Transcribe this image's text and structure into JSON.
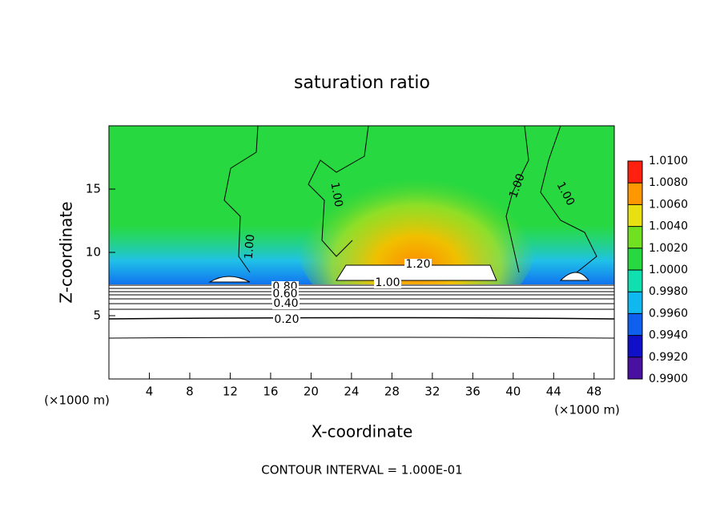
{
  "chart_data": {
    "type": "contour",
    "title": "saturation ratio",
    "xlabel": "X-coordinate",
    "ylabel": "Z-coordinate",
    "x_unit_label": "(×1000 m)",
    "y_unit_label": "(×1000 m)",
    "footer": "CONTOUR INTERVAL = 1.000E-01",
    "xlim": [
      0,
      50
    ],
    "xticks": [
      4,
      8,
      12,
      16,
      20,
      24,
      28,
      32,
      36,
      40,
      44,
      48
    ],
    "ylim": [
      0,
      20
    ],
    "yticks": [
      5,
      10,
      15
    ],
    "contour_labels": [
      "1.20",
      "1.00",
      "0.80",
      "0.60",
      "0.40",
      "0.20",
      "1.00",
      "1.00",
      "1.00",
      "1.00"
    ],
    "colorbar": {
      "lim": [
        0.99,
        1.01
      ],
      "ticks": [
        {
          "value": 0.99,
          "label": "0.9900"
        },
        {
          "value": 0.992,
          "label": "0.9920"
        },
        {
          "value": 0.994,
          "label": "0.9940"
        },
        {
          "value": 0.996,
          "label": "0.9960"
        },
        {
          "value": 0.998,
          "label": "0.9980"
        },
        {
          "value": 1.0,
          "label": "1.0000"
        },
        {
          "value": 1.002,
          "label": "1.0020"
        },
        {
          "value": 1.004,
          "label": "1.0040"
        },
        {
          "value": 1.006,
          "label": "1.0060"
        },
        {
          "value": 1.008,
          "label": "1.0080"
        },
        {
          "value": 1.01,
          "label": "1.0100"
        }
      ],
      "colors": [
        "#4a10a0",
        "#1010c8",
        "#1060f0",
        "#10b8f0",
        "#10e0b0",
        "#28d840",
        "#70e020",
        "#e8e010",
        "#ff9800",
        "#ff2010",
        "#f08a8a"
      ]
    }
  }
}
